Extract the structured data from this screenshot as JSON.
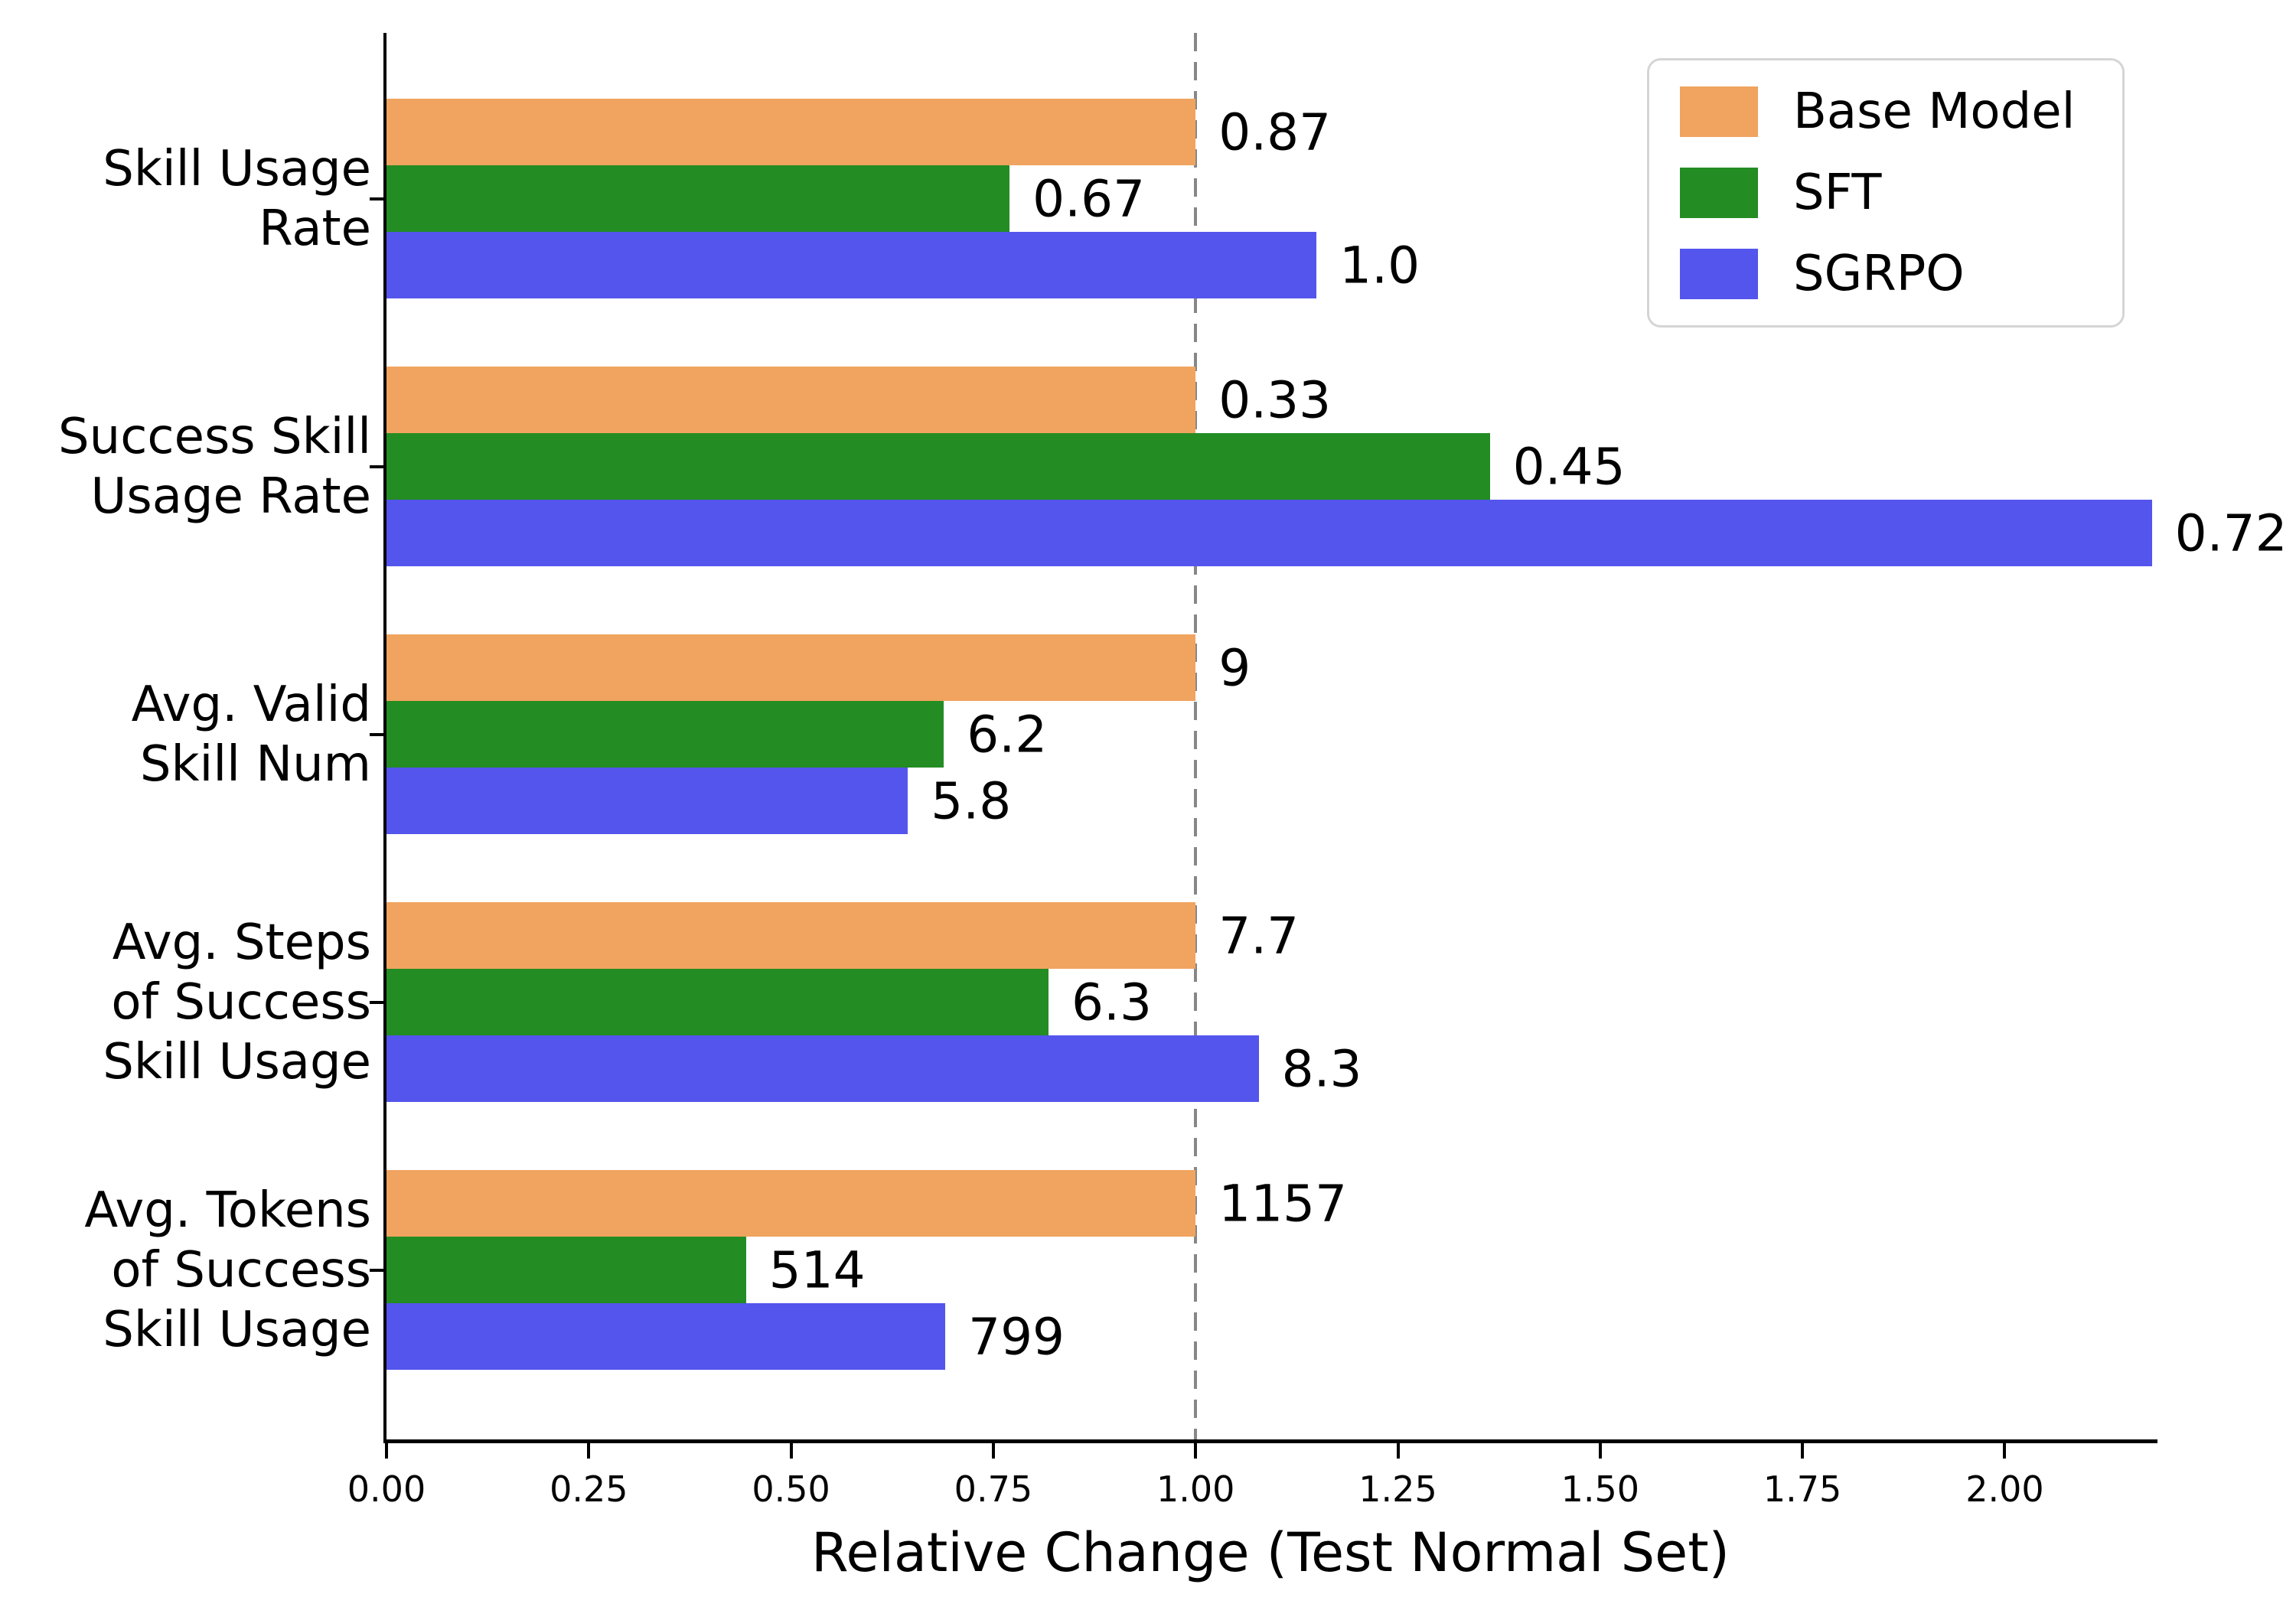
{
  "figure": {
    "background": "#ffffff"
  },
  "chart_data": {
    "type": "bar",
    "orientation": "horizontal",
    "title": "",
    "xlabel": "Relative Change (Test Normal Set)",
    "ylabel": "",
    "categories": [
      "Skill Usage\nRate",
      "Success Skill\nUsage Rate",
      "Avg. Valid\nSkill Num",
      "Avg. Steps\nof Success\nSkill Usage",
      "Avg. Tokens\nof Success\nSkill Usage"
    ],
    "series": [
      {
        "name": "Base Model",
        "color": "#F0A45F",
        "values": [
          0.87,
          0.33,
          9,
          7.7,
          1157
        ],
        "value_labels": [
          "0.87",
          "0.33",
          "9",
          "7.7",
          "1157"
        ]
      },
      {
        "name": "SFT",
        "color": "#238C23",
        "values": [
          0.67,
          0.45,
          6.2,
          6.3,
          514
        ],
        "value_labels": [
          "0.67",
          "0.45",
          "6.2",
          "6.3",
          "514"
        ]
      },
      {
        "name": "SGRPO",
        "color": "#5455EC",
        "values": [
          1.0,
          0.72,
          5.8,
          8.3,
          799
        ],
        "value_labels": [
          "1.0",
          "0.72",
          "5.8",
          "8.3",
          "799"
        ]
      }
    ],
    "bars_show_relative_change_vs": "Base Model",
    "reference_line": {
      "x": 1.0,
      "style": "dashed",
      "color": "#888888"
    },
    "xticks": [
      0,
      0.25,
      0.5,
      0.75,
      1.0,
      1.25,
      1.5,
      1.75,
      2.0
    ],
    "xtick_labels": [
      "0.00",
      "0.25",
      "0.50",
      "0.75",
      "1.00",
      "1.25",
      "1.50",
      "1.75",
      "2.00"
    ],
    "xlim": [
      0,
      2.185
    ],
    "grid": false,
    "legend": {
      "position": "upper right"
    }
  }
}
